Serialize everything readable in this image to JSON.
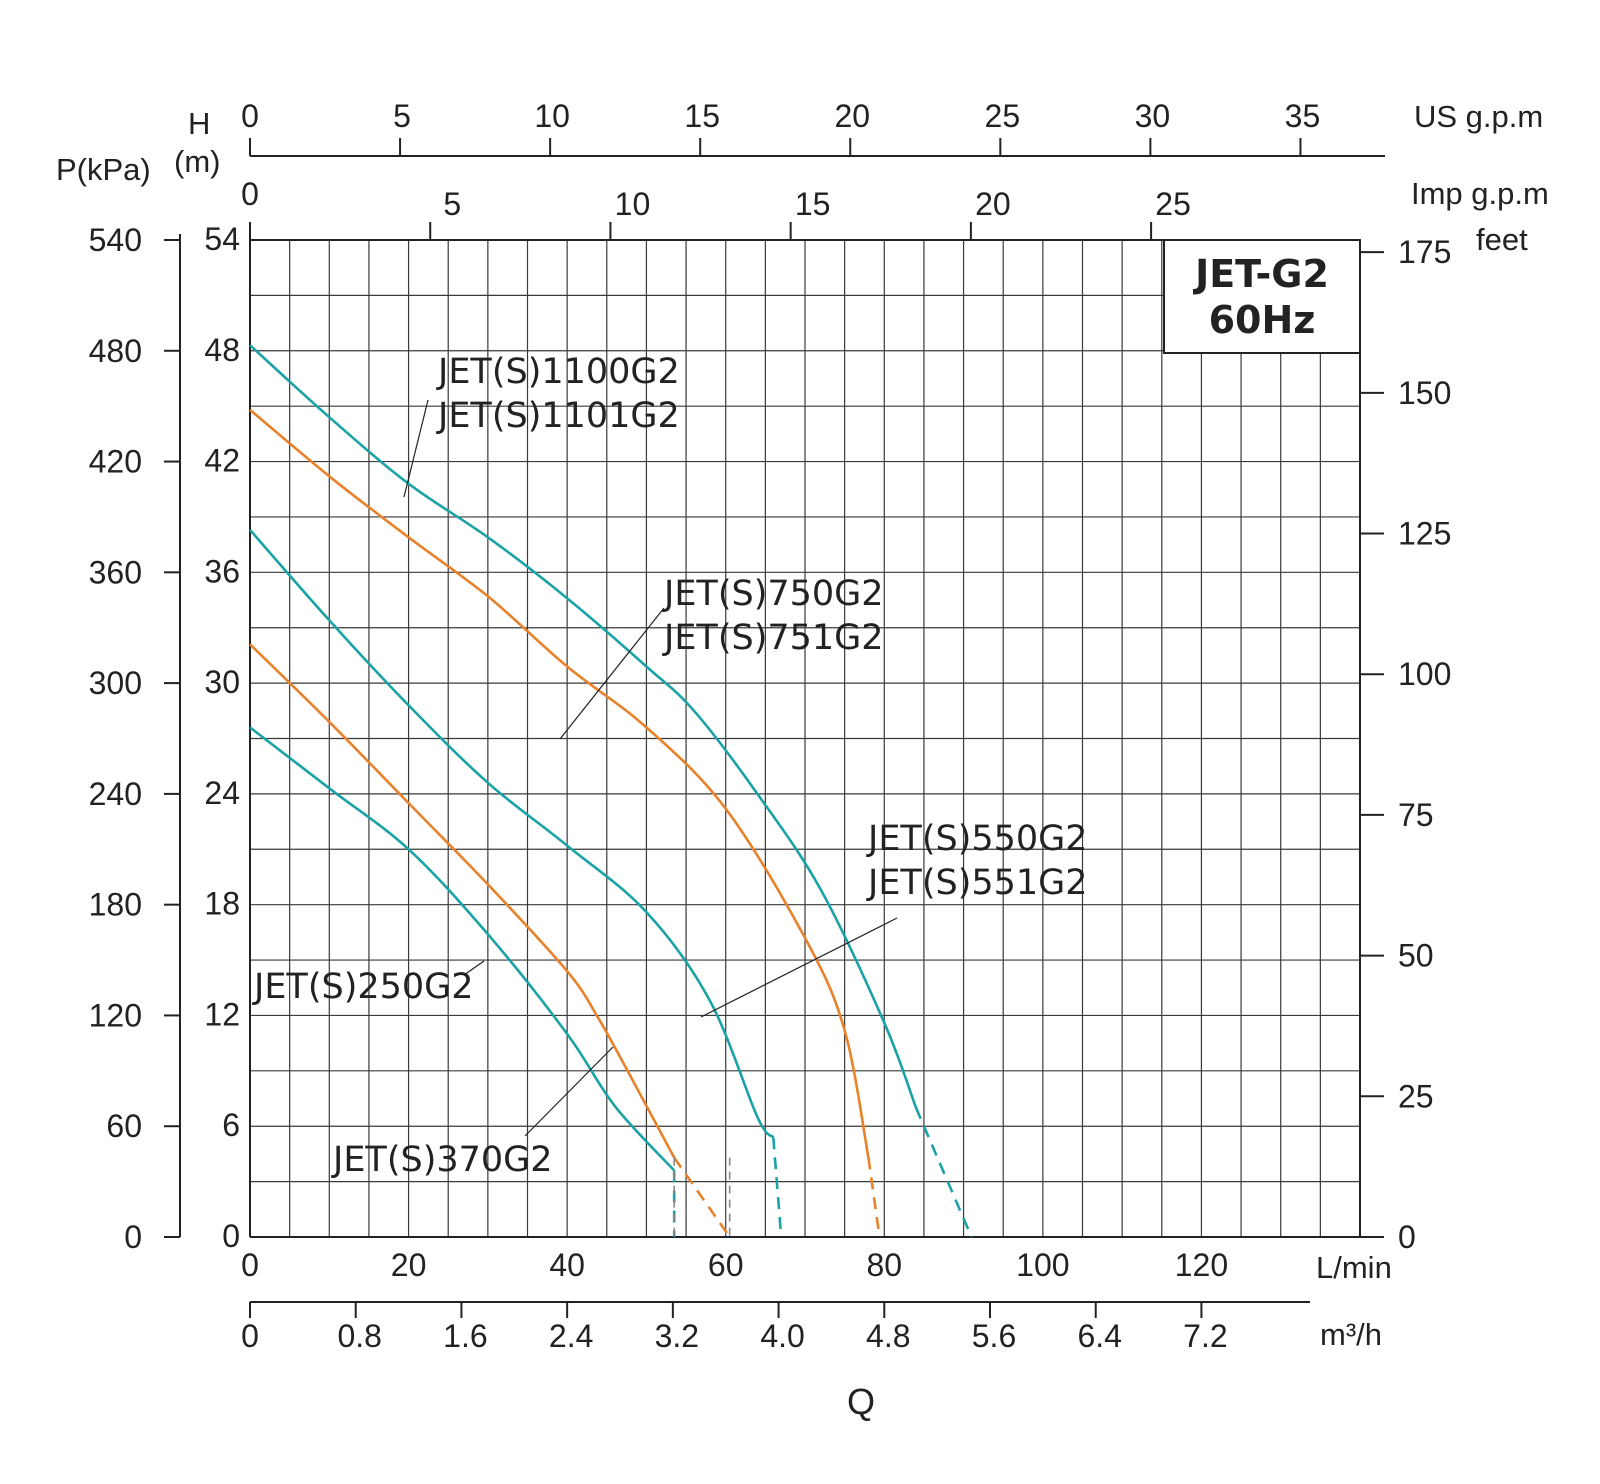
{
  "chart_data": {
    "type": "line",
    "title": "JET-G2",
    "subtitle": "60Hz",
    "xlabel": "Q",
    "x_units": {
      "lmin": "L/min",
      "m3h": "m³/h",
      "usgpm": "US g.p.m",
      "impgpm": "Imp g.p.m"
    },
    "y_units": {
      "kpa": "P(kPa)",
      "m_top": "H",
      "m_bottom": "(m)",
      "feet": "feet"
    },
    "xlim": [
      0,
      140
    ],
    "ylim": [
      0,
      54
    ],
    "ticks": {
      "lmin": [
        "0",
        "20",
        "40",
        "60",
        "80",
        "100",
        "120"
      ],
      "m3h": [
        "0",
        "0.8",
        "1.6",
        "2.4",
        "3.2",
        "4.0",
        "4.8",
        "5.6",
        "6.4",
        "7.2"
      ],
      "usgpm": [
        "0",
        "5",
        "10",
        "15",
        "20",
        "25",
        "30",
        "35"
      ],
      "impgpm": [
        "0",
        "5",
        "10",
        "15",
        "20",
        "25"
      ],
      "m": [
        "0",
        "6",
        "12",
        "18",
        "24",
        "30",
        "36",
        "42",
        "48",
        "54"
      ],
      "kpa": [
        "0",
        "60",
        "120",
        "180",
        "240",
        "300",
        "360",
        "420",
        "480",
        "540"
      ],
      "feet": [
        "0",
        "25",
        "50",
        "75",
        "100",
        "125",
        "150",
        "175"
      ]
    },
    "series": [
      {
        "name": "JET(S)1100G2 / JET(S)1101G2",
        "labels": [
          "JET(S)1100G2",
          "JET(S)1101G2"
        ],
        "color": "#1aa3a6",
        "points": [
          [
            0,
            48.3
          ],
          [
            10,
            44.4
          ],
          [
            20,
            40.8
          ],
          [
            30,
            37.9
          ],
          [
            40,
            34.6
          ],
          [
            50,
            30.9
          ],
          [
            56,
            28.5
          ],
          [
            64,
            24.0
          ],
          [
            72,
            18.8
          ],
          [
            80,
            11.6
          ],
          [
            84,
            7.0
          ]
        ],
        "dashed": [
          [
            84,
            7.0
          ],
          [
            91,
            0
          ]
        ]
      },
      {
        "name": "JET(S)750G2 / JET(S)751G2",
        "labels": [
          "JET(S)750G2",
          "JET(S)751G2"
        ],
        "color": "#e8822b",
        "points": [
          [
            0,
            44.8
          ],
          [
            10,
            41.2
          ],
          [
            20,
            37.9
          ],
          [
            30,
            34.7
          ],
          [
            40,
            30.9
          ],
          [
            50,
            27.6
          ],
          [
            60,
            23.2
          ],
          [
            70,
            16.2
          ],
          [
            75,
            11.2
          ],
          [
            78,
            4.3
          ]
        ],
        "dashed": [
          [
            78,
            4.3
          ],
          [
            79.4,
            0
          ]
        ]
      },
      {
        "name": "JET(S)550G2 / JET(S)551G2",
        "labels": [
          "JET(S)550G2",
          "JET(S)551G2"
        ],
        "color": "#1aa3a6",
        "points": [
          [
            0,
            38.3
          ],
          [
            10,
            33.4
          ],
          [
            20,
            28.8
          ],
          [
            30,
            24.6
          ],
          [
            40,
            21.2
          ],
          [
            50,
            17.6
          ],
          [
            58,
            12.8
          ],
          [
            64,
            6.5
          ],
          [
            66,
            5.4
          ]
        ],
        "dashed": [
          [
            66,
            5.4
          ],
          [
            67,
            0
          ]
        ]
      },
      {
        "name": "JET(S)370G2",
        "labels": [
          "JET(S)370G2"
        ],
        "color": "#e8822b",
        "points": [
          [
            0,
            32.1
          ],
          [
            10,
            27.9
          ],
          [
            20,
            23.5
          ],
          [
            30,
            19.1
          ],
          [
            40,
            14.4
          ],
          [
            44,
            11.8
          ],
          [
            48,
            8.7
          ],
          [
            53.5,
            4.3
          ]
        ],
        "dashed": [
          [
            53.5,
            4.3
          ],
          [
            60.5,
            0
          ]
        ]
      },
      {
        "name": "JET(S)250G2",
        "labels": [
          "JET(S)250G2"
        ],
        "color": "#1aa3a6",
        "points": [
          [
            0,
            27.6
          ],
          [
            10,
            24.3
          ],
          [
            20,
            21.0
          ],
          [
            30,
            16.4
          ],
          [
            40,
            11.0
          ],
          [
            46,
            7.1
          ],
          [
            53.5,
            3.6
          ]
        ],
        "dashed": [
          [
            53.5,
            3.6
          ],
          [
            53.5,
            0
          ]
        ]
      }
    ]
  }
}
